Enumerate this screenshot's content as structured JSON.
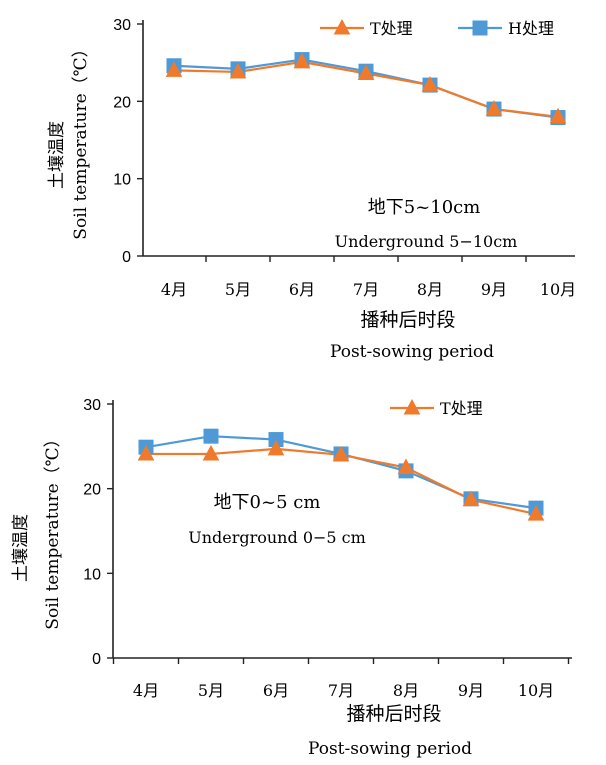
{
  "chart_data": [
    {
      "type": "line",
      "categories": [
        "4月",
        "5月",
        "6月",
        "7月",
        "8月",
        "9月",
        "10月"
      ],
      "series": [
        {
          "name": "T处理",
          "values": [
            24.0,
            23.8,
            25.1,
            23.6,
            22.1,
            19.0,
            18.0
          ],
          "color": "#f07a2b",
          "marker": "triangle"
        },
        {
          "name": "H处理",
          "values": [
            24.6,
            24.2,
            25.4,
            23.9,
            22.1,
            19.0,
            17.9
          ],
          "color": "#4f9ad6",
          "marker": "square"
        }
      ],
      "ylabel_cn": "土壤温度",
      "ylabel_en": "Soil temperature（℃）",
      "xlabel_cn": "播种后时段",
      "xlabel_en": "Post-sowing period",
      "annotation_cn": "地下5~10cm",
      "annotation_en": "Underground 5−10cm",
      "ylim": [
        0,
        30
      ],
      "yticks": [
        "0",
        "10",
        "20",
        "30"
      ],
      "grid": false,
      "legend_position": "top-right"
    },
    {
      "type": "line",
      "categories": [
        "4月",
        "5月",
        "6月",
        "7月",
        "8月",
        "9月",
        "10月"
      ],
      "series": [
        {
          "name": "T处理",
          "values": [
            24.1,
            24.1,
            24.7,
            24.0,
            22.5,
            18.7,
            17.0
          ],
          "color": "#f07a2b",
          "marker": "triangle"
        },
        {
          "name": "",
          "values": [
            24.9,
            26.2,
            25.8,
            24.1,
            22.1,
            18.8,
            17.7
          ],
          "color": "#4f9ad6",
          "marker": "square"
        }
      ],
      "ylabel_cn": "土壤温度",
      "ylabel_en": "Soil temperature（℃）",
      "xlabel_cn": "播种后时段",
      "xlabel_en": "Post-sowing period",
      "annotation_cn": "地下0~5 cm",
      "annotation_en": "Underground  0−5 cm",
      "ylim": [
        0,
        30
      ],
      "yticks": [
        "0",
        "10",
        "20",
        "30"
      ],
      "grid": false,
      "legend_position": "top-right"
    }
  ]
}
